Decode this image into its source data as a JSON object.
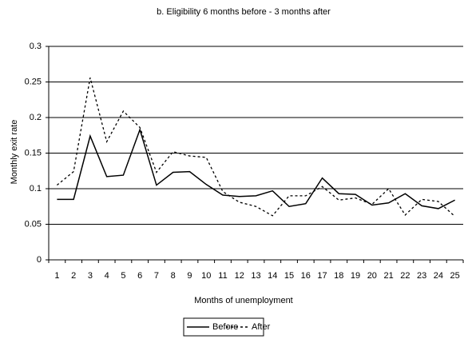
{
  "chart_data": {
    "type": "line",
    "title": "b. Eligibility 6 months before - 3 months after",
    "x_label": "Months of unemployment",
    "y_label": "Monthly exit rate",
    "categories": [
      1,
      2,
      3,
      4,
      5,
      6,
      7,
      8,
      9,
      10,
      11,
      12,
      13,
      14,
      15,
      16,
      17,
      18,
      19,
      20,
      21,
      22,
      23,
      24,
      25
    ],
    "series": [
      {
        "name": "Before",
        "color": "#000000",
        "dashed": false,
        "values": [
          0.085,
          0.085,
          0.174,
          0.117,
          0.119,
          0.183,
          0.105,
          0.123,
          0.124,
          0.106,
          0.091,
          0.089,
          0.09,
          0.097,
          0.075,
          0.079,
          0.115,
          0.093,
          0.092,
          0.077,
          0.08,
          0.093,
          0.076,
          0.072,
          0.084
        ]
      },
      {
        "name": "After",
        "color": "#000000",
        "dashed": true,
        "values": [
          0.105,
          0.124,
          0.256,
          0.166,
          0.209,
          0.186,
          0.123,
          0.152,
          0.146,
          0.144,
          0.096,
          0.081,
          0.075,
          0.062,
          0.09,
          0.09,
          0.103,
          0.084,
          0.087,
          0.078,
          0.1,
          0.063,
          0.085,
          0.082,
          0.061
        ]
      }
    ],
    "ylim": [
      0,
      0.3
    ],
    "yticks": [
      0,
      0.05,
      0.1,
      0.15,
      0.2,
      0.25,
      0.3
    ],
    "grid": true,
    "legend": "bottom"
  }
}
